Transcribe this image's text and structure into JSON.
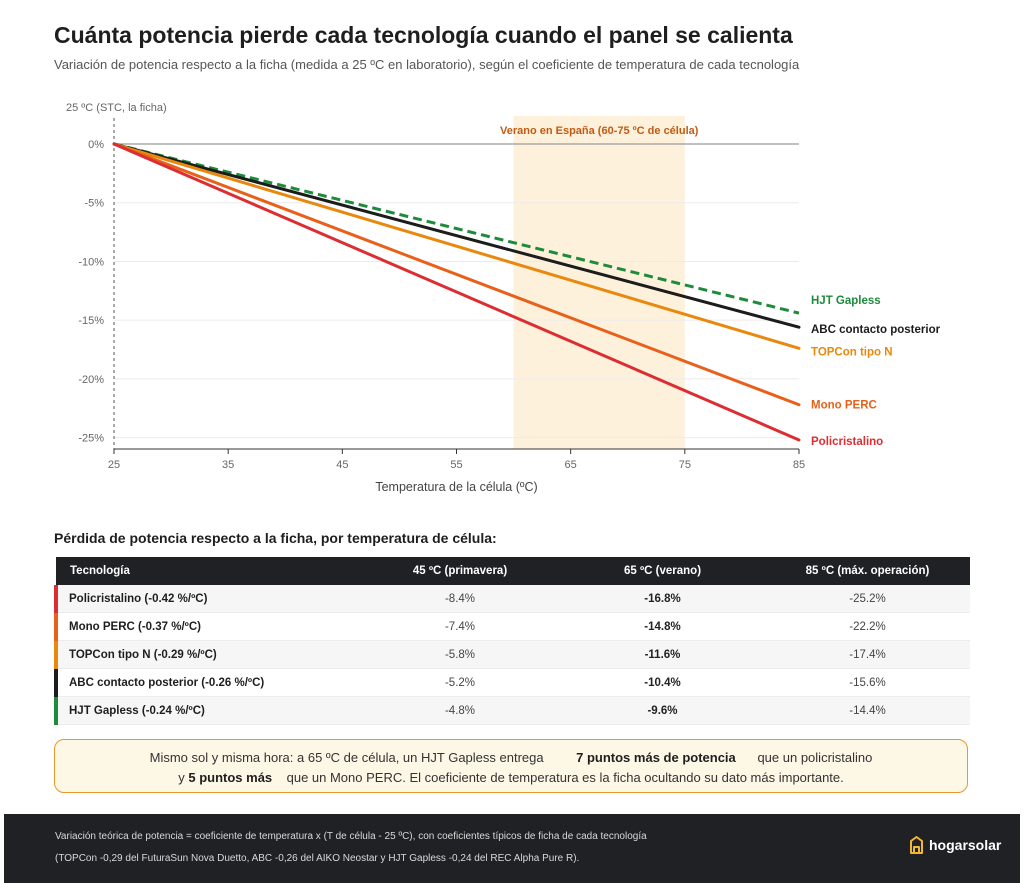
{
  "header": {
    "title": "Cuánta potencia pierde cada tecnología cuando el panel se calienta",
    "subtitle": "Variación de potencia respecto a la ficha (medida a 25 ºC en laboratorio), según el coeficiente de temperatura de cada tecnología"
  },
  "chart_data": {
    "type": "line",
    "title": "Cuánta potencia pierde cada tecnología cuando el panel se calienta",
    "subtitle": "Variación de potencia respecto a la ficha (medida a 25 ºC en laboratorio), según el coeficiente de temperatura de cada tecnología",
    "xlabel": "Temperatura de la célula (ºC)",
    "ylabel": "",
    "reference_label": "25 ºC (STC, la ficha)",
    "xlim": [
      25,
      85
    ],
    "ylim": [
      -26,
      0
    ],
    "x_ticks": [
      25,
      35,
      45,
      55,
      65,
      75,
      85
    ],
    "y_ticks": [
      0,
      -5,
      -10,
      -15,
      -20,
      -25
    ],
    "y_tick_labels": [
      "0%",
      "-5%",
      "-10%",
      "-15%",
      "-20%",
      "-25%"
    ],
    "grid": true,
    "band": {
      "x_start": 60,
      "x_end": 75,
      "label": "Verano en España (60-75 ºC de célula)",
      "color": "#fdf1dc"
    },
    "series": [
      {
        "name": "HJT Gapless",
        "x": [
          25,
          85
        ],
        "values": [
          0,
          -14.4
        ],
        "color": "#1e8a3c",
        "dashed": true
      },
      {
        "name": "ABC contacto posterior",
        "x": [
          25,
          85
        ],
        "values": [
          0,
          -15.6
        ],
        "color": "#1c1c1c",
        "dashed": false
      },
      {
        "name": "TOPCon tipo N",
        "x": [
          25,
          85
        ],
        "values": [
          0,
          -17.4
        ],
        "color": "#e8880c",
        "dashed": false
      },
      {
        "name": "Mono PERC",
        "x": [
          25,
          85
        ],
        "values": [
          0,
          -22.2
        ],
        "color": "#e8601a",
        "dashed": false
      },
      {
        "name": "Policristalino",
        "x": [
          25,
          85
        ],
        "values": [
          0,
          -25.2
        ],
        "color": "#dc2d32",
        "dashed": false
      }
    ]
  },
  "table": {
    "title": "Pérdida de potencia respecto a la ficha, por temperatura de célula:",
    "columns": [
      "Tecnología",
      "45 ºC (primavera)",
      "65 ºC (verano)",
      "85 ºC (máx. operación)"
    ],
    "rows": [
      {
        "tech": "Policristalino (-0.42 %/ºC)",
        "c45": "-8.4%",
        "c65": "-16.8%",
        "c85": "-25.2%",
        "color": "#dc2d32"
      },
      {
        "tech": "Mono PERC (-0.37 %/ºC)",
        "c45": "-7.4%",
        "c65": "-14.8%",
        "c85": "-22.2%",
        "color": "#e8601a"
      },
      {
        "tech": "TOPCon tipo N (-0.29 %/ºC)",
        "c45": "-5.8%",
        "c65": "-11.6%",
        "c85": "-17.4%",
        "color": "#e8880c"
      },
      {
        "tech": "ABC contacto posterior (-0.26 %/ºC)",
        "c45": "-5.2%",
        "c65": "-10.4%",
        "c85": "-15.6%",
        "color": "#1c1c1c"
      },
      {
        "tech": "HJT Gapless (-0.24 %/ºC)",
        "c45": "-4.8%",
        "c65": "-9.6%",
        "c85": "-14.4%",
        "color": "#1e8a3c"
      }
    ]
  },
  "callout": {
    "l1_a": "Mismo sol y misma hora: a 65 ºC de célula, un HJT Gapless entrega",
    "l1_b": "7 puntos más de potencia",
    "l1_c": "que un policristalino",
    "l2_a": "y",
    "l2_b": "5 puntos más",
    "l2_c": "que un Mono PERC. El coeficiente de temperatura es la ficha ocultando su dato más importante."
  },
  "footer": {
    "note1": "Variación teórica de potencia = coeficiente de temperatura x (T de célula - 25 ºC), con coeficientes típicos de ficha de cada tecnología",
    "note2": "(TOPCon -0,29 del FuturaSun Nova Duetto, ABC -0,26 del AIKO Neostar y HJT Gapless -0,24 del REC Alpha Pure R).",
    "logo_text": "hogarsolar",
    "logo_color": "#f2b632"
  }
}
